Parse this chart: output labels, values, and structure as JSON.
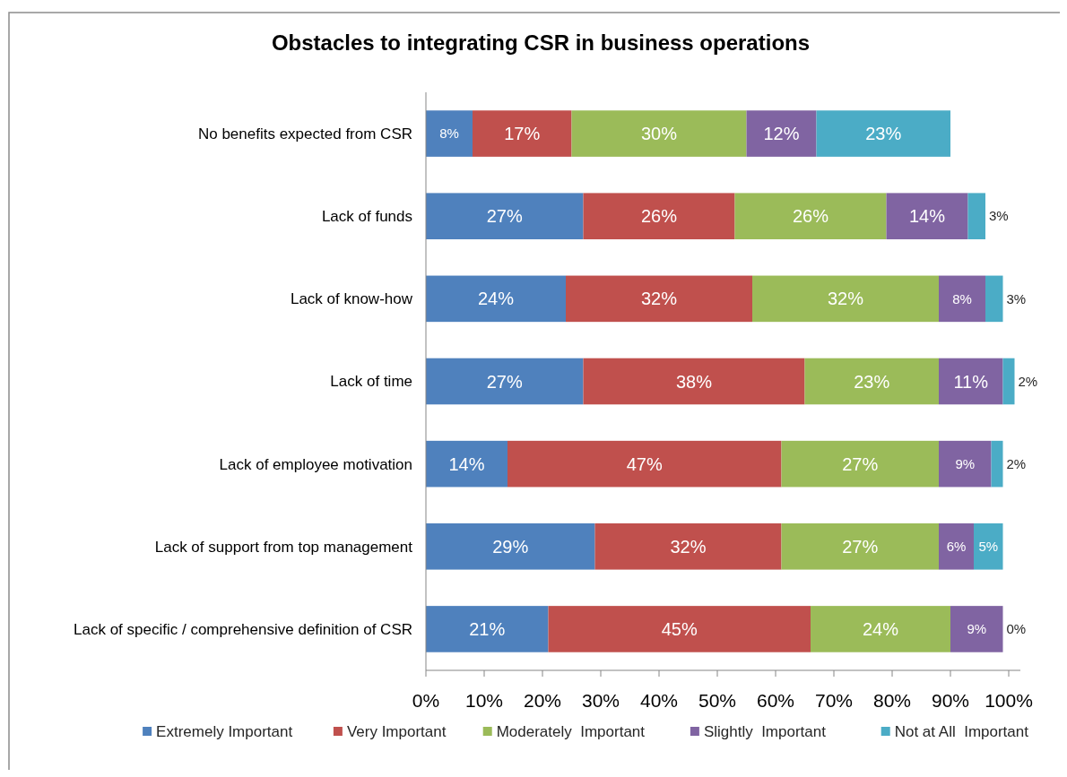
{
  "chart_data": {
    "type": "bar",
    "orientation": "horizontal",
    "stacked": true,
    "title": "Obstacles to integrating CSR in business operations",
    "categories": [
      "No benefits expected from CSR",
      "Lack of funds",
      "Lack of know-how",
      "Lack of time",
      "Lack of employee motivation",
      "Lack of support from top management",
      "Lack of specific / comprehensive definition of CSR"
    ],
    "series": [
      {
        "name": "Extremely Important",
        "color": "#4f81bd",
        "values": [
          8,
          27,
          24,
          27,
          14,
          29,
          21
        ],
        "value_labels": [
          "8%",
          "27%",
          "24%",
          "27%",
          "14%",
          "29%",
          "21%"
        ]
      },
      {
        "name": "Very Important",
        "color": "#c0504d",
        "values": [
          17,
          26,
          32,
          38,
          47,
          32,
          45
        ],
        "value_labels": [
          "17%",
          "26%",
          "32%",
          "38%",
          "47%",
          "32%",
          "45%"
        ]
      },
      {
        "name": "Moderately  Important",
        "color": "#9bbb59",
        "values": [
          30,
          26,
          32,
          23,
          27,
          27,
          24
        ],
        "value_labels": [
          "30%",
          "26%",
          "32%",
          "23%",
          "27%",
          "27%",
          "24%"
        ]
      },
      {
        "name": "Slightly  Important",
        "color": "#8064a2",
        "values": [
          12,
          14,
          8,
          11,
          9,
          6,
          9
        ],
        "value_labels": [
          "12%",
          "14%",
          "8%",
          "11%",
          "9%",
          "6%",
          "9%"
        ]
      },
      {
        "name": "Not at All  Important",
        "color": "#4bacc6",
        "values": [
          23,
          3,
          3,
          2,
          2,
          5,
          0
        ],
        "value_labels": [
          "23%",
          "3%",
          "3%",
          "2%",
          "2%",
          "5%",
          "0%"
        ]
      }
    ],
    "xlim": [
      0,
      102
    ],
    "xticks": [
      {
        "value": 0,
        "label": "0%"
      },
      {
        "value": 10,
        "label": "10%"
      },
      {
        "value": 20,
        "label": "20%"
      },
      {
        "value": 30,
        "label": "30%"
      },
      {
        "value": 40,
        "label": "40%"
      },
      {
        "value": 50,
        "label": "50%"
      },
      {
        "value": 60,
        "label": "60%"
      },
      {
        "value": 70,
        "label": "70%"
      },
      {
        "value": 80,
        "label": "80%"
      },
      {
        "value": 90,
        "label": "90%"
      },
      {
        "value": 100,
        "label": "100%"
      }
    ],
    "grid": false,
    "legend": "bottom"
  }
}
